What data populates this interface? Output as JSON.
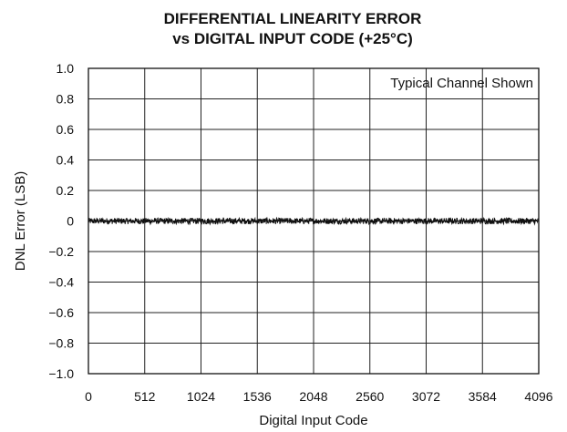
{
  "chart_data": {
    "type": "line",
    "title_line1": "DIFFERENTIAL LINEARITY ERROR",
    "title_line2": "vs DIGITAL INPUT CODE (+25°C)",
    "xlabel": "Digital Input Code",
    "ylabel": "DNL Error (LSB)",
    "annotation": "Typical Channel Shown",
    "xlim": [
      0,
      4096
    ],
    "ylim": [
      -1.0,
      1.0
    ],
    "xticks": [
      0,
      512,
      1024,
      1536,
      2048,
      2560,
      3072,
      3584,
      4096
    ],
    "xtick_labels": [
      "0",
      "512",
      "1024",
      "1536",
      "2048",
      "2560",
      "3072",
      "3584",
      "4096"
    ],
    "yticks": [
      1.0,
      0.8,
      0.6,
      0.4,
      0.2,
      0,
      -0.2,
      -0.4,
      -0.6,
      -0.8,
      -1.0
    ],
    "ytick_labels": [
      "1.0",
      "0.8",
      "0.6",
      "0.4",
      "0.2",
      "0",
      "−0.2",
      "−0.4",
      "−0.6",
      "−0.8",
      "−1.0"
    ],
    "grid": true,
    "series": [
      {
        "x_range": [
          0,
          4096
        ],
        "value_approx": 0,
        "noise_band": [
          -0.02,
          0.02
        ]
      }
    ]
  }
}
